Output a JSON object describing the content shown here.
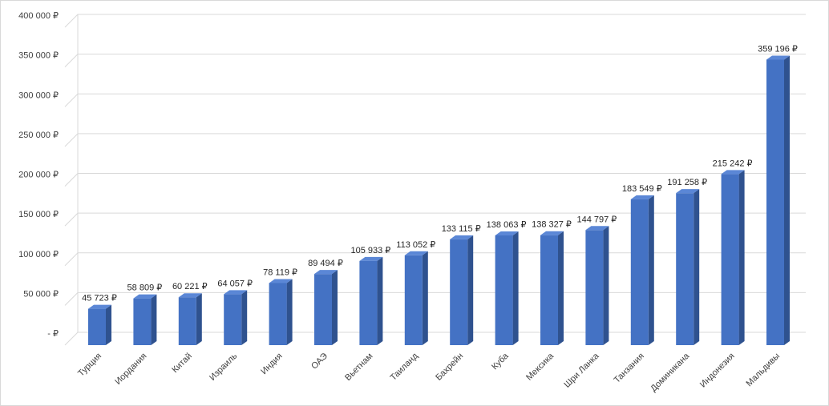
{
  "chart_data": {
    "type": "bar",
    "title": "",
    "xlabel": "",
    "ylabel": "",
    "ylim": [
      0,
      400000
    ],
    "grid": true,
    "legend": "none",
    "bar_color": "#4472c4",
    "bar_side_color": "#2f528f",
    "bar_top_color": "#5b87d6",
    "y_ticks": [
      {
        "value": 0,
        "label": "-  ₽"
      },
      {
        "value": 50000,
        "label": "50 000 ₽"
      },
      {
        "value": 100000,
        "label": "100 000 ₽"
      },
      {
        "value": 150000,
        "label": "150 000 ₽"
      },
      {
        "value": 200000,
        "label": "200 000 ₽"
      },
      {
        "value": 250000,
        "label": "250 000 ₽"
      },
      {
        "value": 300000,
        "label": "300 000 ₽"
      },
      {
        "value": 350000,
        "label": "350 000 ₽"
      },
      {
        "value": 400000,
        "label": "400 000 ₽"
      }
    ],
    "categories": [
      "Турция",
      "Иордания",
      "Китай",
      "Израиль",
      "Индия",
      "ОАЭ",
      "Вьетнам",
      "Таиланд",
      "Бахрейн",
      "Куба",
      "Мексика",
      "Шри Ланка",
      "Танзания",
      "Доминикана",
      "Индонезия",
      "Мальдивы"
    ],
    "values": [
      45723,
      58809,
      60221,
      64057,
      78119,
      89494,
      105933,
      113052,
      133115,
      138063,
      138327,
      144797,
      183549,
      191258,
      215242,
      359196
    ],
    "value_labels": [
      "45 723 ₽",
      "58 809 ₽",
      "60 221 ₽",
      "64 057 ₽",
      "78 119 ₽",
      "89 494 ₽",
      "105 933 ₽",
      "113 052 ₽",
      "133 115 ₽",
      "138 063 ₽",
      "138 327 ₽",
      "144 797 ₽",
      "183 549 ₽",
      "191 258 ₽",
      "215 242 ₽",
      "359 196 ₽"
    ]
  }
}
